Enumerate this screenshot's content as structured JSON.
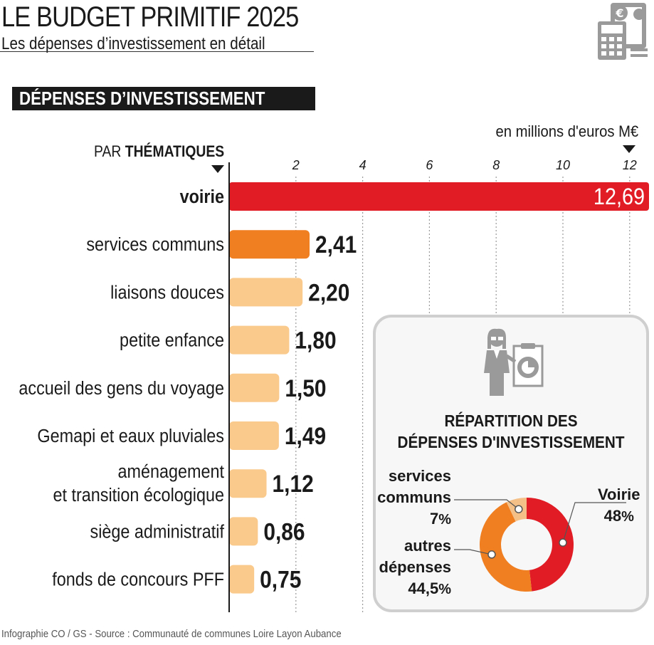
{
  "header": {
    "title": "LE BUDGET PRIMITIF 2025",
    "subtitle": "Les dépenses d’investissement en détail"
  },
  "section_label": "DÉPENSES D’INVESTISSEMENT",
  "colors": {
    "highlight_red": "#e11c24",
    "highlight_orange": "#f07f22",
    "bar_peach": "#fac98c",
    "donut_remaining": "#f5c088",
    "panel_border": "#cfcfcf"
  },
  "chart_data": [
    {
      "type": "bar",
      "orientation": "horizontal",
      "unit_label": "en millions d'euros M€",
      "category_header": {
        "prefix": "PAR ",
        "bold": "THÉMATIQUES"
      },
      "x_ticks": [
        "2",
        "4",
        "6",
        "8",
        "10",
        "12"
      ],
      "xlim": [
        0,
        12
      ],
      "categories": [
        "voirie",
        "services communs",
        "liaisons douces",
        "petite enfance",
        "accueil des gens du voyage",
        "Gemapi et eaux pluviales",
        "aménagement|et transition écologique",
        "siège administratif",
        "fonds de concours PFF"
      ],
      "values": [
        12.69,
        2.41,
        2.2,
        1.8,
        1.5,
        1.49,
        1.12,
        0.86,
        0.75
      ],
      "value_labels": [
        "12,69",
        "2,41",
        "2,20",
        "1,80",
        "1,50",
        "1,49",
        "1,12",
        "0,86",
        "0,75"
      ],
      "grid": "vertical dotted"
    },
    {
      "type": "pie",
      "donut": true,
      "title_lines": [
        "RÉPARTITION DES",
        "DÉPENSES D'INVESTISSEMENT"
      ],
      "slices": [
        {
          "label": "Voirie",
          "value": 48
        },
        {
          "label": "autres dépenses",
          "value": 44.5
        },
        {
          "label": "services communs",
          "value": 7
        }
      ],
      "labels": {
        "voirie": {
          "name": "Voirie",
          "pct": "48",
          "unit": "%"
        },
        "autres": {
          "name_lines": [
            "autres",
            "dépenses"
          ],
          "pct": "44,5",
          "unit": "%"
        },
        "services": {
          "name_lines": [
            "services",
            "communs"
          ],
          "pct": "7",
          "unit": "%"
        }
      }
    }
  ],
  "footer": "Infographie CO / GS - Source : Communauté de communes Loire Layon Aubance"
}
